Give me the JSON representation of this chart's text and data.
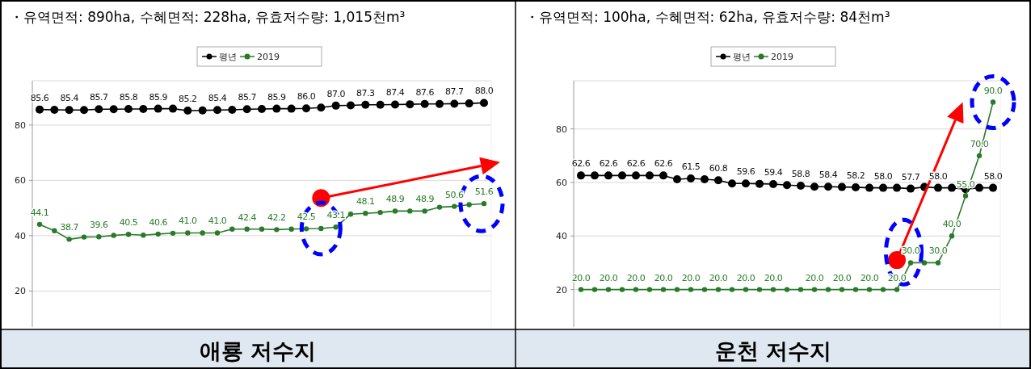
{
  "chart_data": [
    {
      "type": "line",
      "title": "애룡 저수지",
      "subtitle": "・유역면적: 890ha, 수혜면적: 228ha, 유효저수량: 1,015천m³",
      "categories": [
        null,
        null,
        null,
        null,
        null,
        null,
        null,
        null,
        null,
        null,
        null,
        null,
        null,
        null,
        null,
        null,
        null,
        null,
        null,
        null,
        null,
        null,
        null,
        null,
        null,
        null,
        null,
        null,
        null,
        null,
        null
      ],
      "series": [
        {
          "name": "평년",
          "color": "#000000",
          "values": [
            85.6,
            85.5,
            85.4,
            85.4,
            85.7,
            85.7,
            85.8,
            85.8,
            85.9,
            85.9,
            85.2,
            85.3,
            85.4,
            85.5,
            85.7,
            85.8,
            85.9,
            85.9,
            86.0,
            86.3,
            87.0,
            87.1,
            87.3,
            87.3,
            87.4,
            87.5,
            87.6,
            87.6,
            87.7,
            87.8,
            88.0
          ],
          "value_labels": [
            "85.6",
            null,
            "85.4",
            null,
            "85.7",
            null,
            "85.8",
            null,
            "85.9",
            null,
            "85.2",
            null,
            "85.4",
            null,
            "85.7",
            null,
            "85.9",
            null,
            "86.0",
            null,
            "87.0",
            null,
            "87.3",
            null,
            "87.4",
            null,
            "87.6",
            null,
            "87.7",
            null,
            "88.0"
          ]
        },
        {
          "name": "2019",
          "color": "#2a7a2a",
          "values": [
            44.1,
            41.8,
            38.7,
            39.5,
            39.6,
            40.1,
            40.5,
            40.2,
            40.6,
            40.9,
            41.0,
            41.0,
            41.0,
            42.4,
            42.4,
            42.4,
            42.2,
            42.4,
            42.5,
            42.6,
            43.1,
            47.8,
            48.1,
            48.4,
            48.9,
            48.9,
            48.9,
            50.3,
            50.6,
            51.2,
            51.6
          ],
          "value_labels": [
            "44.1",
            null,
            "38.7",
            null,
            "39.6",
            null,
            "40.5",
            null,
            "40.6",
            null,
            "41.0",
            null,
            "41.0",
            null,
            "42.4",
            null,
            "42.2",
            null,
            "42.5",
            null,
            "43.1",
            null,
            "48.1",
            null,
            "48.9",
            null,
            "48.9",
            null,
            "50.6",
            null,
            "51.6"
          ]
        }
      ],
      "ylim": [
        7,
        96
      ],
      "yticks": [
        20,
        40,
        60,
        80
      ],
      "grid": "y",
      "legend": "top",
      "marker": "circle",
      "line_style": "solid"
    },
    {
      "type": "line",
      "title": "운천 저수지",
      "subtitle": "・유역면적: 100ha, 수혜면적: 62ha, 유효저수량: 84천m³",
      "categories": [
        null,
        null,
        null,
        null,
        null,
        null,
        null,
        null,
        null,
        null,
        null,
        null,
        null,
        null,
        null,
        null,
        null,
        null,
        null,
        null,
        null,
        null,
        null,
        null,
        null,
        null,
        null,
        null,
        null,
        null,
        null
      ],
      "series": [
        {
          "name": "평년",
          "color": "#000000",
          "values": [
            62.6,
            62.6,
            62.6,
            62.6,
            62.6,
            62.6,
            62.6,
            61.2,
            61.5,
            61.2,
            60.8,
            59.6,
            59.6,
            59.5,
            59.4,
            59.0,
            58.8,
            58.4,
            58.4,
            58.3,
            58.2,
            58.0,
            58.0,
            58.0,
            57.7,
            58.3,
            58.0,
            58.0,
            57.5,
            58.0,
            58.0
          ],
          "value_labels": [
            "62.6",
            null,
            "62.6",
            null,
            "62.6",
            null,
            "62.6",
            null,
            "61.5",
            null,
            "60.8",
            null,
            "59.6",
            null,
            "59.4",
            null,
            "58.8",
            null,
            "58.4",
            null,
            "58.2",
            null,
            "58.0",
            null,
            "57.7",
            null,
            "58.0",
            null,
            null,
            null,
            "58.0"
          ]
        },
        {
          "name": "2019",
          "color": "#2a7a2a",
          "values": [
            20.0,
            20.0,
            20.0,
            20.0,
            20.0,
            20.0,
            20.0,
            20.0,
            20.0,
            20.0,
            20.0,
            20.0,
            20.0,
            20.0,
            20.0,
            20.0,
            20.0,
            20.0,
            20.0,
            20.0,
            20.0,
            20.0,
            20.0,
            20.0,
            30.0,
            30.0,
            30.0,
            40.0,
            55.0,
            70.0,
            90.0
          ],
          "value_labels": [
            "20.0",
            null,
            "20.0",
            null,
            "20.0",
            null,
            "20.0",
            null,
            "20.0",
            null,
            "20.0",
            null,
            "20.0",
            null,
            "20.0",
            null,
            null,
            "20.0",
            null,
            "20.0",
            null,
            "20.0",
            null,
            "20.0",
            "30.0",
            null,
            "30.0",
            "40.0",
            "55.0",
            "70.0",
            "90.0"
          ]
        }
      ],
      "ylim": [
        6,
        98
      ],
      "yticks": [
        20,
        40,
        60,
        80
      ],
      "grid": "y",
      "legend": "top",
      "marker": "circle",
      "line_style": "solid"
    }
  ]
}
